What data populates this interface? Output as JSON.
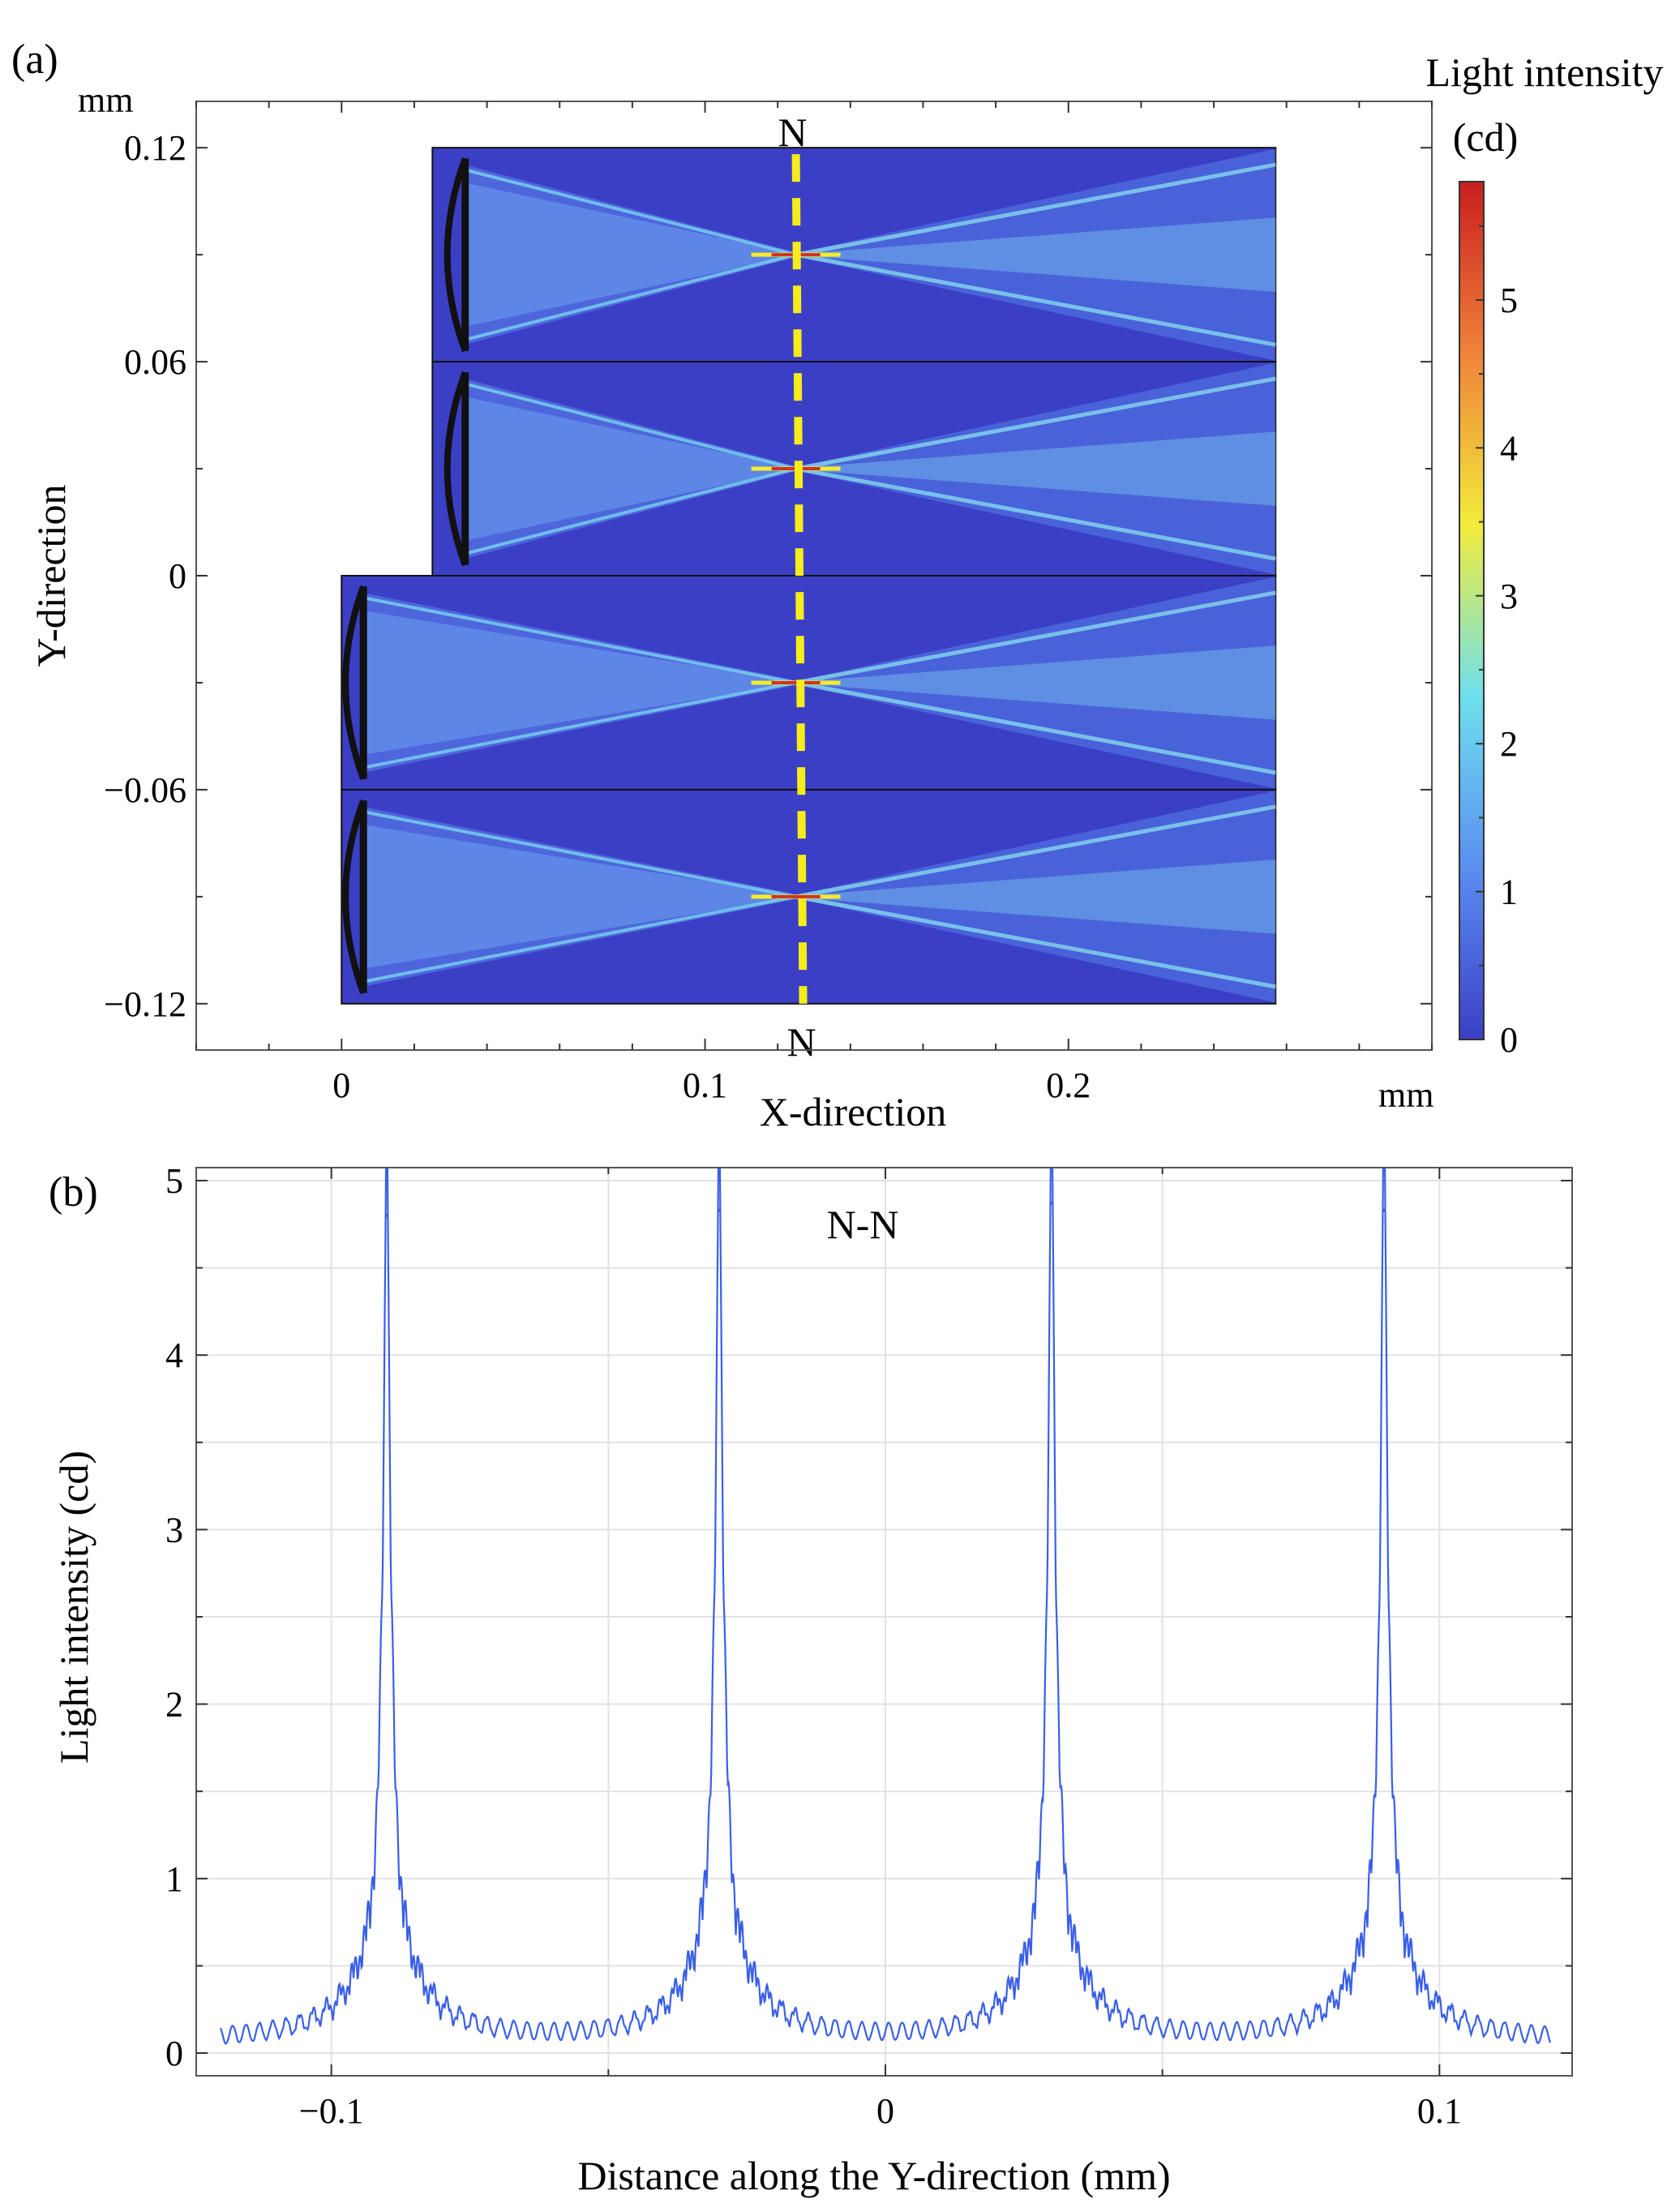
{
  "chart_data": [
    {
      "panel_label": "(a)",
      "type": "heatmap",
      "title": "",
      "xlabel": "X-direction",
      "ylabel": "Y-direction",
      "x_unit": "mm",
      "y_unit": "mm",
      "xlim": [
        -0.04,
        0.3
      ],
      "ylim": [
        -0.133,
        0.133
      ],
      "x_ticks": [
        0,
        0.1,
        0.2
      ],
      "x_tick_labels": [
        "0",
        "0.1",
        "0.2"
      ],
      "y_ticks": [
        0.12,
        0.06,
        0,
        -0.06,
        -0.12
      ],
      "y_tick_labels": [
        "0.12",
        "0.06",
        "0",
        "−0.06",
        "−0.12"
      ],
      "colorbar": {
        "title_line1": "Light intensity",
        "title_line2": "(cd)",
        "min": 0,
        "max": 5.8,
        "ticks": [
          0,
          1,
          2,
          3,
          4,
          5
        ],
        "tick_labels": [
          "0",
          "1",
          "2",
          "3",
          "4",
          "5"
        ],
        "colors": [
          "#3b3fc6",
          "#5a8ef0",
          "#6ee0ee",
          "#f2ec3a",
          "#f0823a",
          "#c81e1e"
        ]
      },
      "section_line": {
        "label_top": "N",
        "label_bottom": "N",
        "x_top": 0.125,
        "x_bottom": 0.127,
        "color": "#f5ec1a"
      },
      "domains": [
        {
          "x0": 0.025,
          "x1": 0.257,
          "y0": 0.06,
          "y1": 0.12
        },
        {
          "x0": 0.025,
          "x1": 0.257,
          "y0": 0.0,
          "y1": 0.06
        },
        {
          "x0": 0.0,
          "x1": 0.257,
          "y0": -0.06,
          "y1": 0.0
        },
        {
          "x0": 0.0,
          "x1": 0.257,
          "y0": -0.12,
          "y1": -0.06
        }
      ],
      "lenses": [
        {
          "x": 0.034,
          "y0": 0.063,
          "y1": 0.117
        },
        {
          "x": 0.034,
          "y0": 0.003,
          "y1": 0.057
        },
        {
          "x": 0.006,
          "y0": -0.057,
          "y1": -0.003
        },
        {
          "x": 0.006,
          "y0": -0.117,
          "y1": -0.063
        }
      ],
      "focal_points": [
        {
          "x": 0.125,
          "y": 0.09
        },
        {
          "x": 0.125,
          "y": 0.03
        },
        {
          "x": 0.125,
          "y": -0.03
        },
        {
          "x": 0.125,
          "y": -0.09
        }
      ]
    },
    {
      "panel_label": "(b)",
      "type": "line",
      "title": "N-N",
      "xlabel": "Distance along the Y-direction (mm)",
      "ylabel": "Light intensity (cd)",
      "xlim": [
        -0.12,
        0.12
      ],
      "ylim": [
        0,
        5
      ],
      "x_ticks": [
        -0.1,
        0,
        0.1
      ],
      "x_tick_labels": [
        "−0.1",
        "0",
        "0.1"
      ],
      "y_ticks": [
        0,
        1,
        2,
        3,
        4,
        5
      ],
      "y_tick_labels": [
        "0",
        "1",
        "2",
        "3",
        "4",
        "5"
      ],
      "grid": true,
      "line_color": "#3a5fe6",
      "baseline": 0.08,
      "ripple_amplitude": 0.05,
      "peaks": [
        {
          "x": -0.09,
          "y": 4.8,
          "shoulder": 1.22
        },
        {
          "x": -0.03,
          "y": 4.83,
          "shoulder": 1.2
        },
        {
          "x": 0.03,
          "y": 4.87,
          "shoulder": 0.97
        },
        {
          "x": 0.09,
          "y": 4.83,
          "shoulder": 0.98
        }
      ]
    }
  ]
}
